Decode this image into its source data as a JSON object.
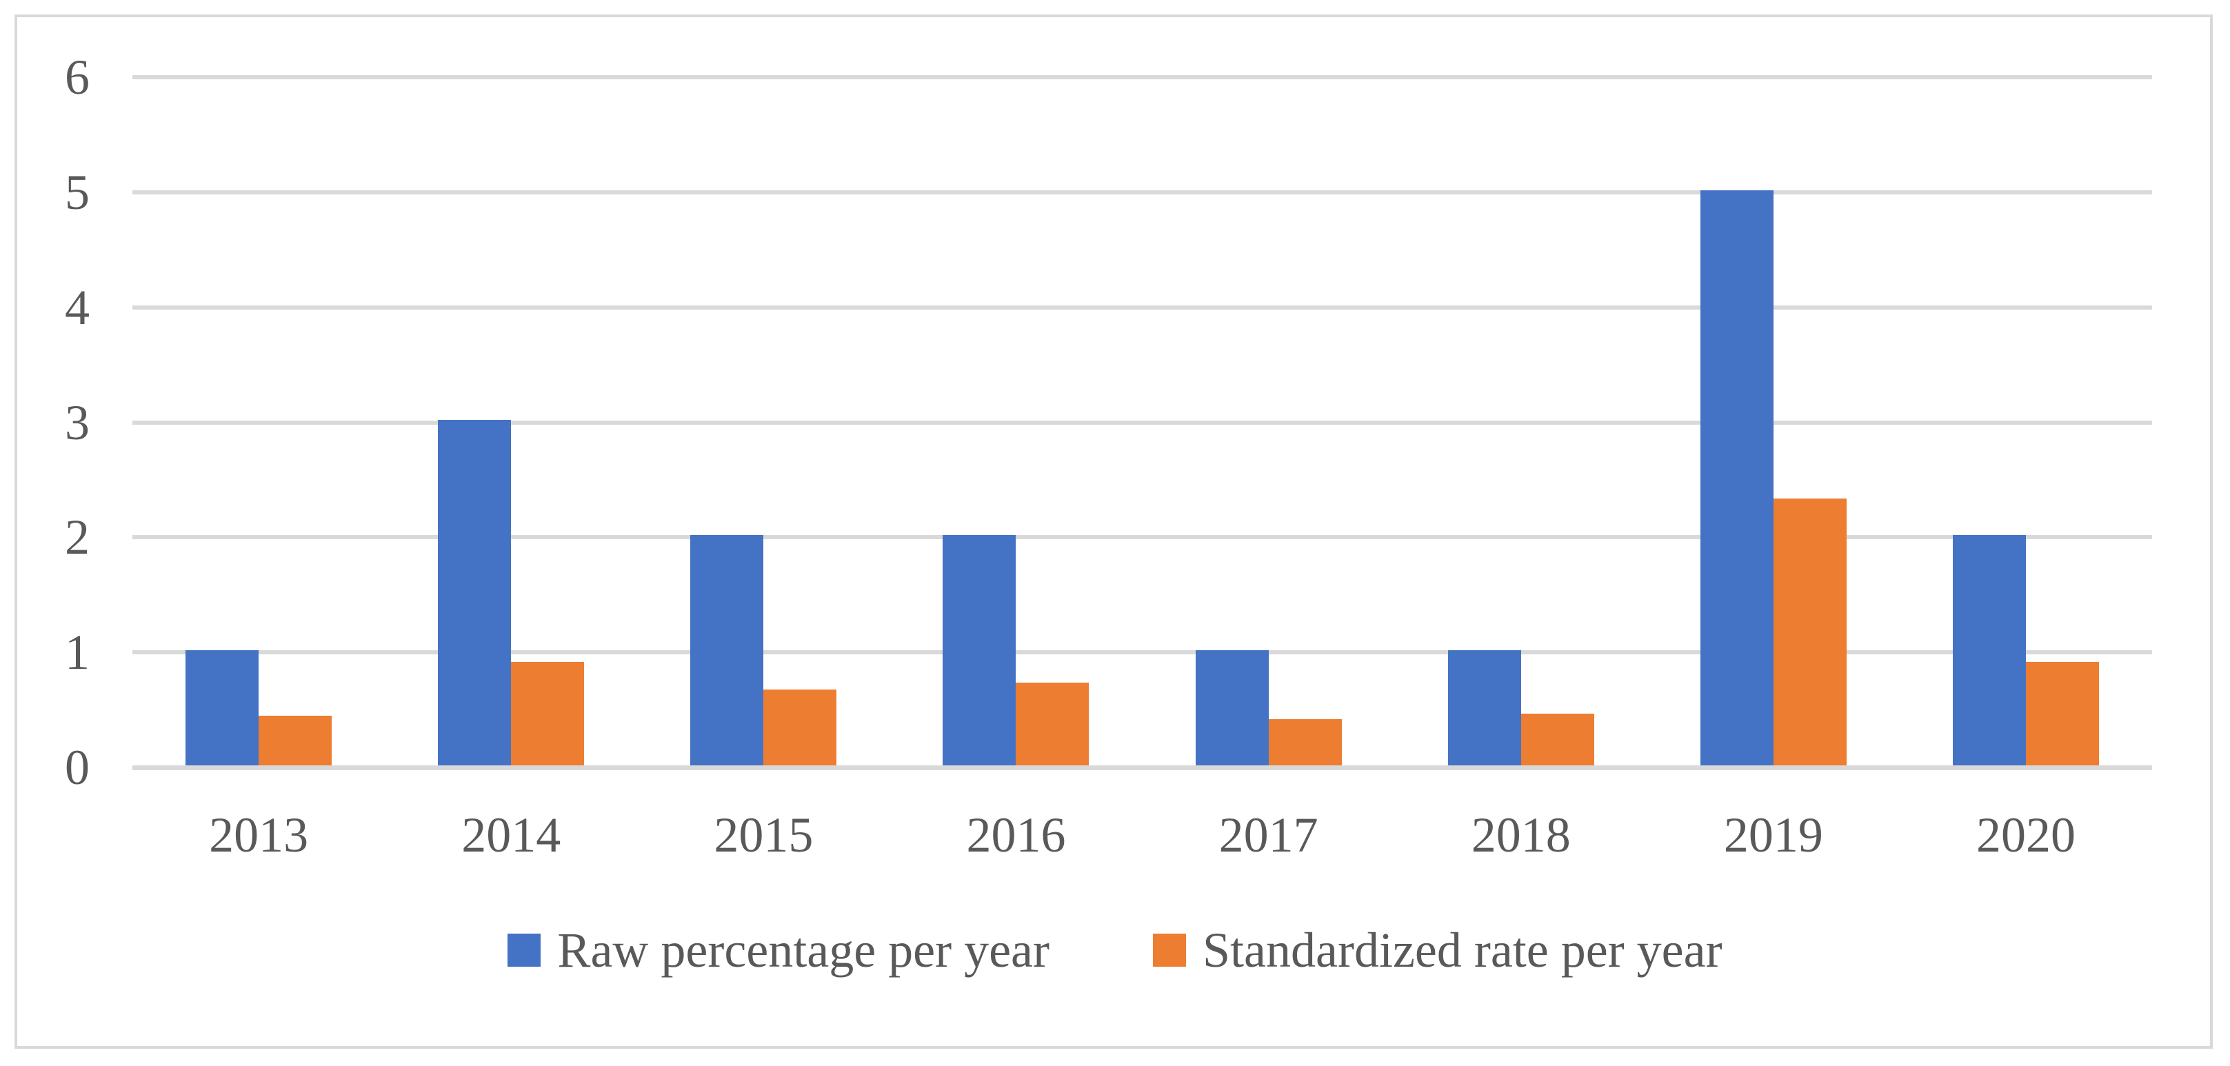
{
  "chart_data": {
    "type": "bar",
    "title": "",
    "xlabel": "",
    "ylabel": "",
    "categories": [
      "2013",
      "2014",
      "2015",
      "2016",
      "2017",
      "2018",
      "2019",
      "2020"
    ],
    "series": [
      {
        "name": "Raw percentage per year",
        "color": "#4472C4",
        "values": [
          1,
          3,
          2,
          2,
          1,
          1,
          5,
          2
        ]
      },
      {
        "name": "Standardized rate per year",
        "color": "#ED7D31",
        "values": [
          0.43,
          0.9,
          0.66,
          0.72,
          0.4,
          0.45,
          2.32,
          0.9
        ]
      }
    ],
    "ylim": [
      0,
      6
    ],
    "yticks": [
      6,
      5,
      4,
      3,
      2,
      1,
      0
    ],
    "grid": true,
    "gridline_color": "#D9D9D9",
    "axis_line_color": "#D9D9D9",
    "tick_text_color": "#595959",
    "frame_border_color": "#D9D9D9",
    "legend_position": "bottom"
  }
}
